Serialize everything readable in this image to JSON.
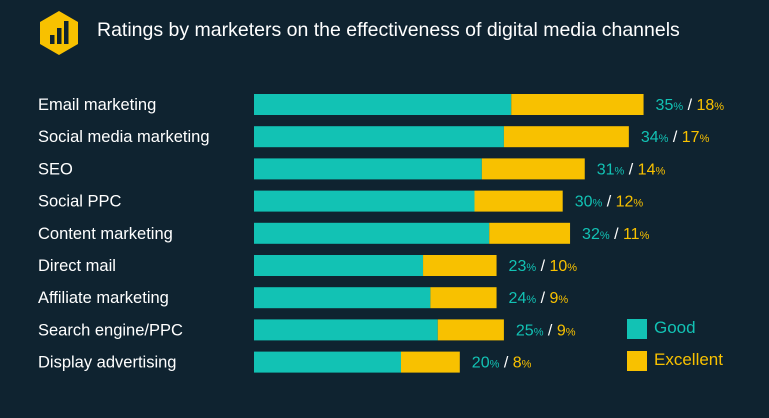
{
  "title": "Ratings by marketers on the effectiveness of digital media channels",
  "logo_icon": "bar-chart-icon",
  "colors": {
    "background": "#0f2330",
    "good": "#12c2b4",
    "excellent": "#f8c100",
    "text": "#ffffff",
    "logo_bg": "#f8c100",
    "logo_fg": "#0f2330"
  },
  "legend": {
    "good": "Good",
    "excellent": "Excellent"
  },
  "chart_data": {
    "type": "bar",
    "orientation": "horizontal",
    "stacked": true,
    "categories": [
      "Email marketing",
      "Social media marketing",
      "SEO",
      "Social PPC",
      "Content marketing",
      "Direct mail",
      "Affiliate marketing",
      "Search engine/PPC",
      "Display advertising"
    ],
    "series": [
      {
        "name": "Good",
        "values": [
          35,
          34,
          31,
          30,
          32,
          23,
          24,
          25,
          20
        ]
      },
      {
        "name": "Excellent",
        "values": [
          18,
          17,
          14,
          12,
          11,
          10,
          9,
          9,
          8
        ]
      }
    ],
    "value_suffix": "%",
    "separator": " / ",
    "grid": false,
    "legend_position": "bottom-right"
  }
}
